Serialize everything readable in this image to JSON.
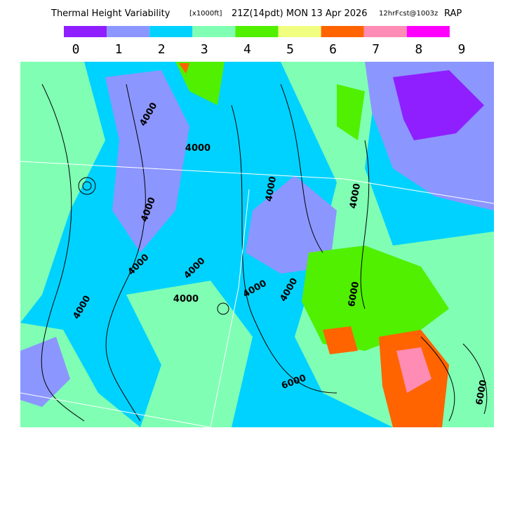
{
  "header": {
    "title": "Thermal Height Variability",
    "units": "[x1000ft]",
    "time": "21Z(14pdt) MON 13 Apr 2026",
    "forecast": "12hrFcst@1003z",
    "model": "RAP"
  },
  "legend": {
    "colors": [
      "#8f1fff",
      "#8c96ff",
      "#00d2ff",
      "#80ffb4",
      "#50f000",
      "#f0ff80",
      "#ff6400",
      "#ff8cb4",
      "#ff00ff"
    ],
    "labels": [
      0,
      1,
      2,
      3,
      4,
      5,
      6,
      7,
      8,
      9
    ]
  },
  "contour_labels": [
    "4000",
    "4000",
    "4000",
    "4000",
    "4000",
    "4000",
    "4000",
    "4000",
    "4000",
    "4000",
    "4000",
    "6000",
    "6000",
    "6000"
  ]
}
